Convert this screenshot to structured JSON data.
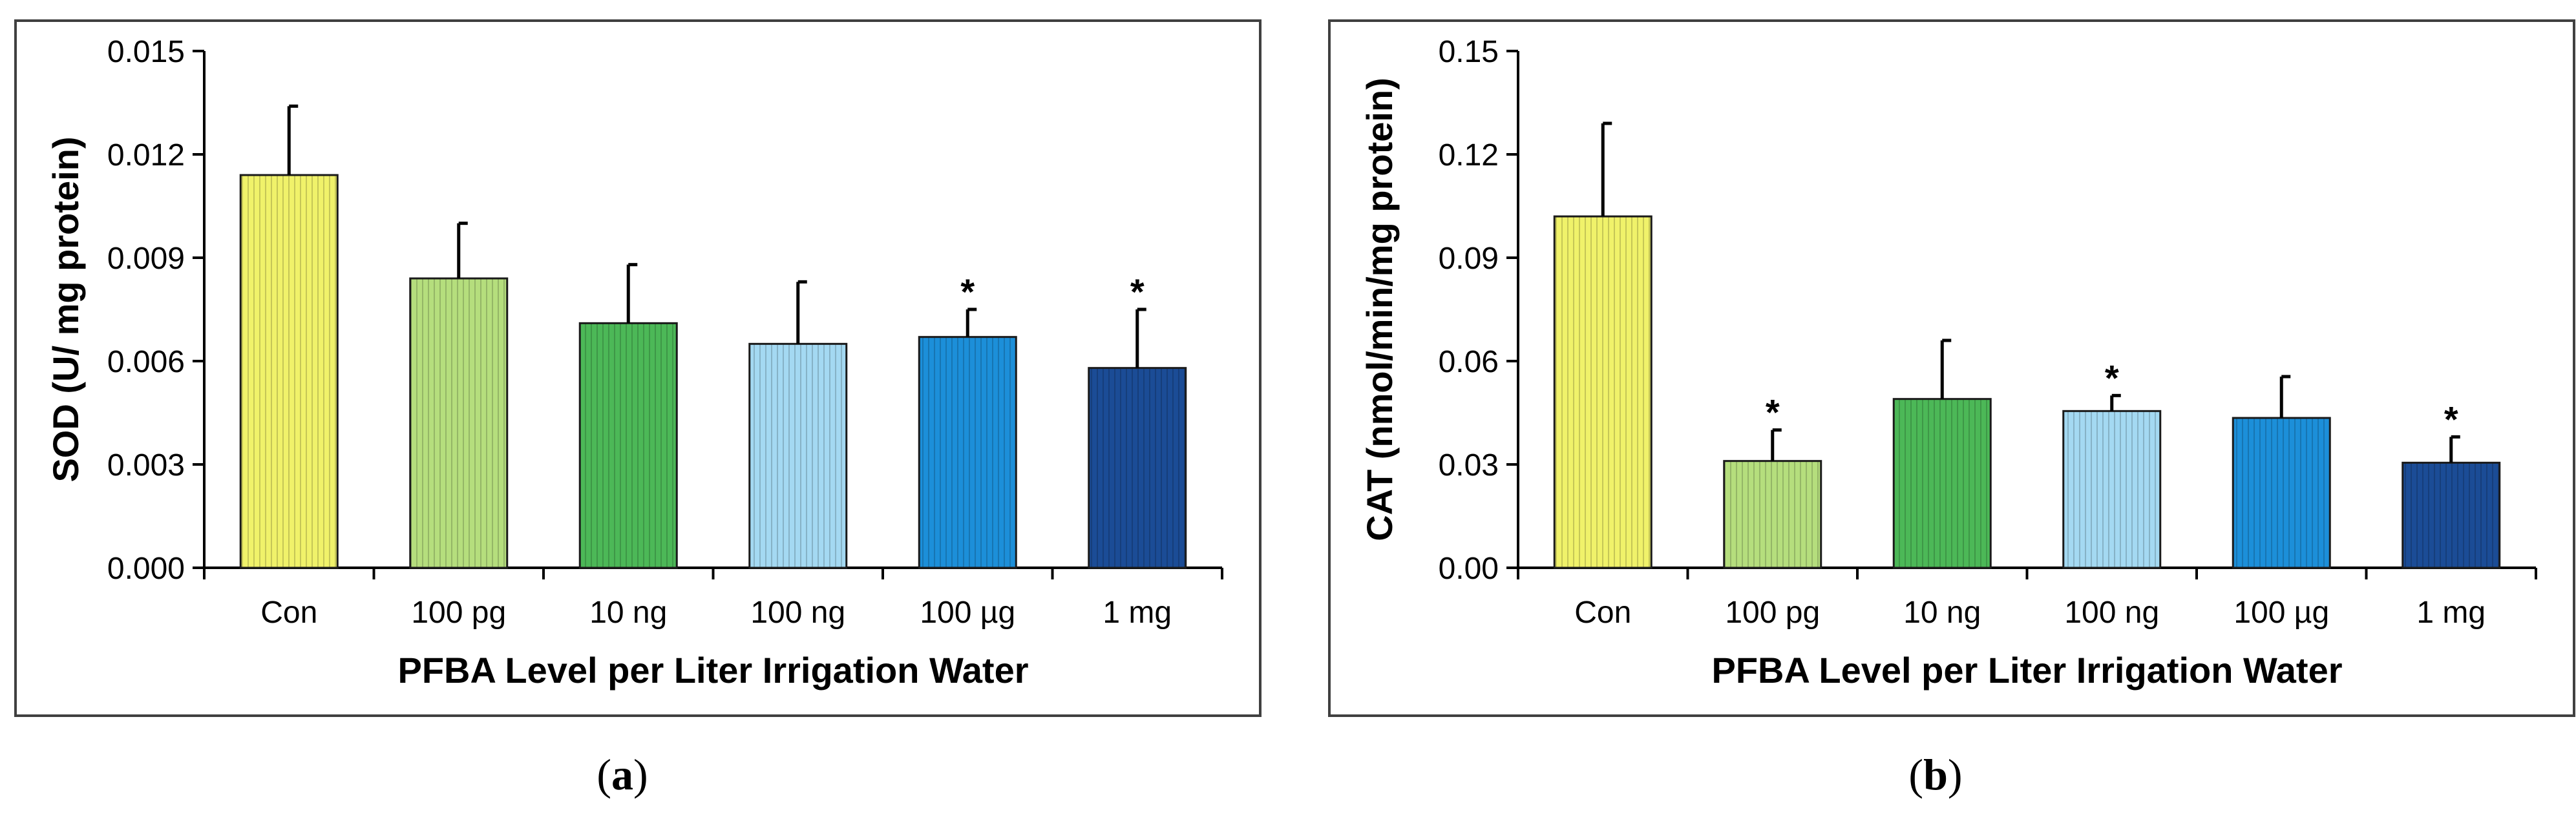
{
  "chart_data": [
    {
      "type": "bar",
      "panel_label": "a",
      "title": "",
      "xlabel": "PFBA Level per Liter Irrigation Water",
      "ylabel": "SOD (U/ mg protein)",
      "ylim": [
        0,
        0.015
      ],
      "yticks": [
        "0.000",
        "0.003",
        "0.006",
        "0.009",
        "0.012",
        "0.015"
      ],
      "categories": [
        "Con",
        "100 pg",
        "10 ng",
        "100 ng",
        "100 µg",
        "1 mg"
      ],
      "values": [
        0.0114,
        0.0084,
        0.0071,
        0.0065,
        0.0067,
        0.0058
      ],
      "errors": [
        0.002,
        0.0016,
        0.0017,
        0.0018,
        0.0008,
        0.0017
      ],
      "significance": [
        "",
        "",
        "",
        "",
        "*",
        "*"
      ],
      "colors": [
        "#f0f26a",
        "#b5de7d",
        "#4cb857",
        "#a4d9f2",
        "#1c8fd9",
        "#1b4c96"
      ],
      "grid": false,
      "legend": "none"
    },
    {
      "type": "bar",
      "panel_label": "b",
      "title": "",
      "xlabel": "PFBA Level per Liter Irrigation Water",
      "ylabel": "CAT (nmol/min/mg protein)",
      "ylim": [
        0,
        0.15
      ],
      "yticks": [
        "0.00",
        "0.03",
        "0.06",
        "0.09",
        "0.12",
        "0.15"
      ],
      "categories": [
        "Con",
        "100 pg",
        "10 ng",
        "100 ng",
        "100 µg",
        "1 mg"
      ],
      "values": [
        0.102,
        0.031,
        0.049,
        0.0455,
        0.0435,
        0.0305
      ],
      "errors": [
        0.027,
        0.009,
        0.017,
        0.0045,
        0.012,
        0.0075
      ],
      "significance": [
        "",
        "*",
        "",
        "*",
        "",
        "*"
      ],
      "colors": [
        "#f0f26a",
        "#b5de7d",
        "#4cb857",
        "#a4d9f2",
        "#1c8fd9",
        "#1b4c96"
      ],
      "grid": false,
      "legend": "none"
    }
  ]
}
